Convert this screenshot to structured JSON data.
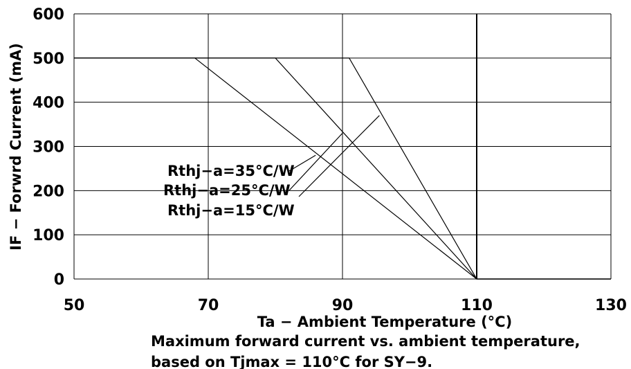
{
  "chart_data": {
    "type": "line",
    "title": "",
    "xlabel": "Ta − Ambient Temperature (°C)",
    "ylabel": "IF − Forwrd Current (mA)",
    "xlim": [
      50,
      130
    ],
    "ylim": [
      0,
      600
    ],
    "x_ticks": [
      50,
      70,
      90,
      110,
      130
    ],
    "y_ticks": [
      0,
      100,
      200,
      300,
      400,
      500,
      600
    ],
    "grid": true,
    "series": [
      {
        "name": "Rthj−a=35°C/W",
        "x": [
          50,
          68,
          110,
          130
        ],
        "y": [
          500,
          500,
          0,
          0
        ]
      },
      {
        "name": "Rthj−a=25°C/W",
        "x": [
          50,
          80,
          110,
          130
        ],
        "y": [
          500,
          500,
          0,
          0
        ]
      },
      {
        "name": "Rthj−a=15°C/W",
        "x": [
          50,
          91,
          110,
          130
        ],
        "y": [
          500,
          500,
          0,
          0
        ]
      }
    ],
    "caption": [
      "Maximum forward current vs. ambient temperature,",
      "based on Tjmax = 110°C for SY−9."
    ]
  }
}
